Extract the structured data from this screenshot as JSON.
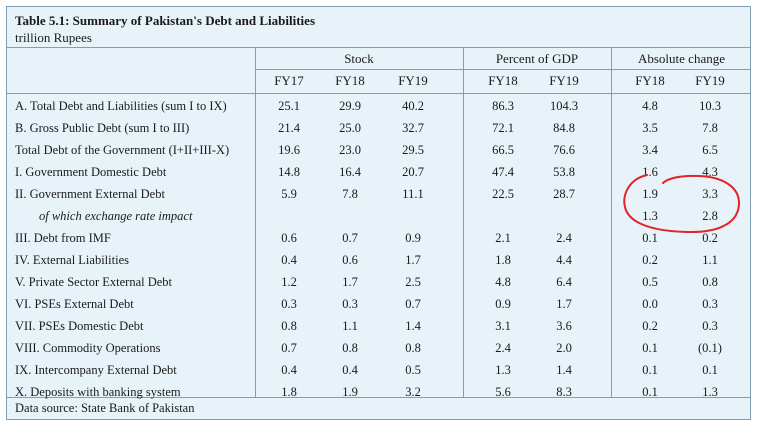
{
  "table": {
    "title": "Table 5.1: Summary of Pakistan's Debt and Liabilities",
    "unit": "trillion Rupees",
    "groups": [
      "Stock",
      "Percent of GDP",
      "Absolute change"
    ],
    "headers": [
      "FY17",
      "FY18",
      "FY19",
      "FY18",
      "FY19",
      "FY18",
      "FY19"
    ],
    "rows": [
      {
        "label": "A. Total Debt and Liabilities (sum I to IX)",
        "values": [
          "25.1",
          "29.9",
          "40.2",
          "86.3",
          "104.3",
          "4.8",
          "10.3"
        ]
      },
      {
        "label": "B. Gross Public Debt (sum I to III)",
        "values": [
          "21.4",
          "25.0",
          "32.7",
          "72.1",
          "84.8",
          "3.5",
          "7.8"
        ]
      },
      {
        "label": "Total Debt of the Government (I+II+III-X)",
        "values": [
          "19.6",
          "23.0",
          "29.5",
          "66.5",
          "76.6",
          "3.4",
          "6.5"
        ]
      },
      {
        "label": "I. Government Domestic Debt",
        "values": [
          "14.8",
          "16.4",
          "20.7",
          "47.4",
          "53.8",
          "1.6",
          "4.3"
        ]
      },
      {
        "label": "II. Government External Debt",
        "values": [
          "5.9",
          "7.8",
          "11.1",
          "22.5",
          "28.7",
          "1.9",
          "3.3"
        ]
      },
      {
        "label": "of which exchange rate impact",
        "values": [
          "",
          "",
          "",
          "",
          "",
          "1.3",
          "2.8"
        ],
        "italic": true
      },
      {
        "label": "III. Debt from IMF",
        "values": [
          "0.6",
          "0.7",
          "0.9",
          "2.1",
          "2.4",
          "0.1",
          "0.2"
        ]
      },
      {
        "label": "IV. External Liabilities",
        "values": [
          "0.4",
          "0.6",
          "1.7",
          "1.8",
          "4.4",
          "0.2",
          "1.1"
        ]
      },
      {
        "label": "V. Private Sector External Debt",
        "values": [
          "1.2",
          "1.7",
          "2.5",
          "4.8",
          "6.4",
          "0.5",
          "0.8"
        ]
      },
      {
        "label": "VI. PSEs External Debt",
        "values": [
          "0.3",
          "0.3",
          "0.7",
          "0.9",
          "1.7",
          "0.0",
          "0.3"
        ]
      },
      {
        "label": "VII. PSEs Domestic Debt",
        "values": [
          "0.8",
          "1.1",
          "1.4",
          "3.1",
          "3.6",
          "0.2",
          "0.3"
        ]
      },
      {
        "label": "VIII. Commodity Operations",
        "values": [
          "0.7",
          "0.8",
          "0.8",
          "2.4",
          "2.0",
          "0.1",
          "(0.1)"
        ]
      },
      {
        "label": "IX. Intercompany External Debt",
        "values": [
          "0.4",
          "0.4",
          "0.5",
          "1.3",
          "1.4",
          "0.1",
          "0.1"
        ]
      },
      {
        "label": "X. Deposits with banking system",
        "values": [
          "1.8",
          "1.9",
          "3.2",
          "5.6",
          "8.3",
          "0.1",
          "1.3"
        ]
      }
    ],
    "source": "Data source: State Bank of Pakistan"
  },
  "annotation": {
    "type": "hand-drawn circle",
    "color": "#e0242a"
  }
}
